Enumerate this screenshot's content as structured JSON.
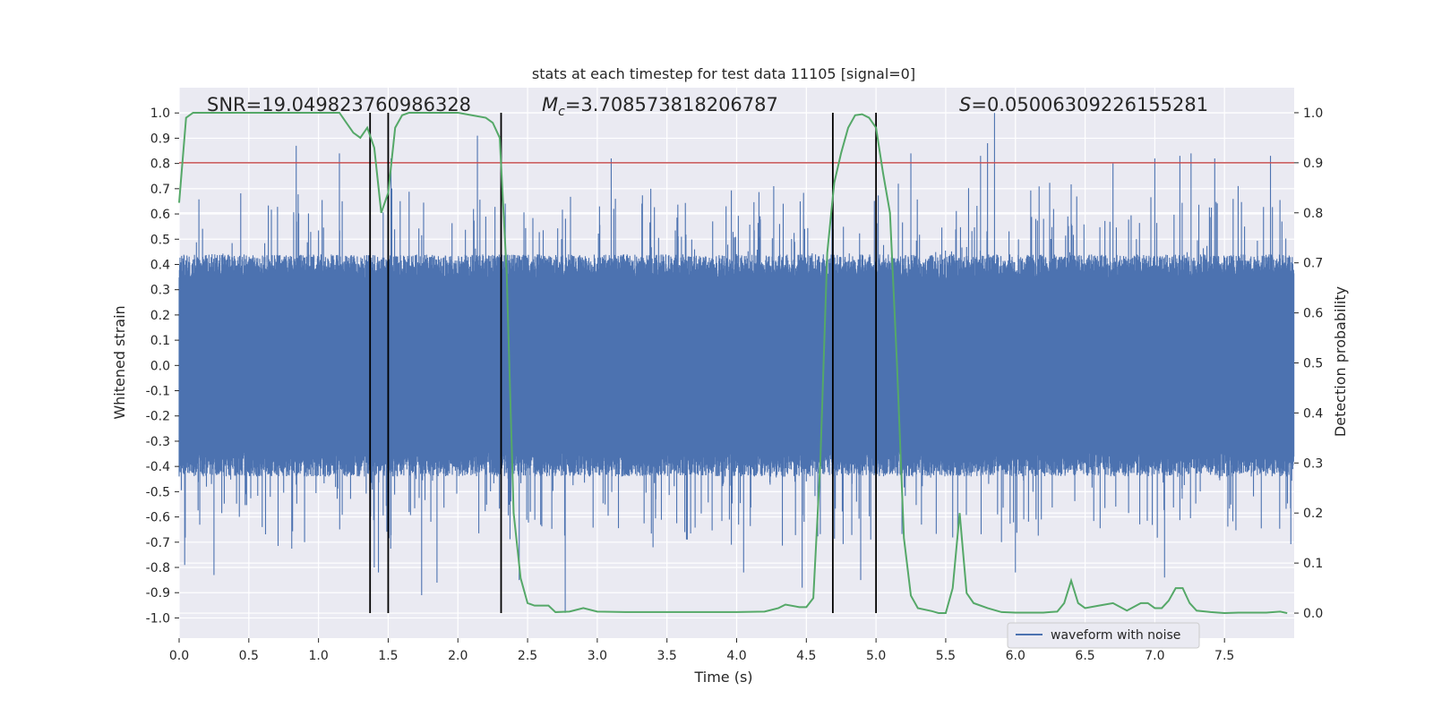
{
  "chart_data": {
    "type": "line",
    "title": "stats at each timestep for test data 11105 [signal=0]",
    "xlabel": "Time (s)",
    "ylabel_left": "Whitened strain",
    "ylabel_right": "Detection probability",
    "xlim": [
      0,
      8
    ],
    "ylim_left": [
      -1.08,
      1.1
    ],
    "ylim_right": [
      -0.05,
      1.05
    ],
    "x_ticks": [
      "0.0",
      "0.5",
      "1.0",
      "1.5",
      "2.0",
      "2.5",
      "3.0",
      "3.5",
      "4.0",
      "4.5",
      "5.0",
      "5.5",
      "6.0",
      "6.5",
      "7.0",
      "7.5"
    ],
    "x_tick_values": [
      0,
      0.5,
      1,
      1.5,
      2,
      2.5,
      3,
      3.5,
      4,
      4.5,
      5,
      5.5,
      6,
      6.5,
      7,
      7.5
    ],
    "y_left_ticks": [
      "1.0",
      "0.9",
      "0.8",
      "0.7",
      "0.6",
      "0.5",
      "0.4",
      "0.3",
      "0.2",
      "0.1",
      "0.0",
      "-0.1",
      "-0.2",
      "-0.3",
      "-0.4",
      "-0.5",
      "-0.6",
      "-0.7",
      "-0.8",
      "-0.9",
      "-1.0"
    ],
    "y_left_tick_values": [
      1.0,
      0.9,
      0.8,
      0.7,
      0.6,
      0.5,
      0.4,
      0.3,
      0.2,
      0.1,
      0.0,
      -0.1,
      -0.2,
      -0.3,
      -0.4,
      -0.5,
      -0.6,
      -0.7,
      -0.8,
      -0.9,
      -1.0
    ],
    "y_right_ticks": [
      "1.0",
      "0.9",
      "0.8",
      "0.7",
      "0.6",
      "0.5",
      "0.4",
      "0.3",
      "0.2",
      "0.1",
      "0.0"
    ],
    "y_right_tick_values": [
      1.0,
      0.9,
      0.8,
      0.7,
      0.6,
      0.5,
      0.4,
      0.3,
      0.2,
      0.1,
      0.0
    ],
    "annotations": {
      "snr": "SNR=19.049823760986328",
      "mc_symbol": "M",
      "mc_sub": "c",
      "mc_value": "=3.708573818206787",
      "s_symbol": "S",
      "s_value": "=0.05006309226155281"
    },
    "threshold": {
      "value": 0.9,
      "axis": "right",
      "color": "#c44e52"
    },
    "event_markers_x": [
      1.37,
      1.5,
      2.31,
      4.69,
      5.0
    ],
    "series": [
      {
        "name": "waveform with noise",
        "axis": "left",
        "color": "#4c72b0",
        "style": "dense noise, envelope about ±0.42 with spikes up to +1.0 and down to -0.98",
        "spikes": [
          [
            0.04,
            -0.79
          ],
          [
            0.25,
            -0.83
          ],
          [
            0.84,
            0.87
          ],
          [
            0.9,
            -0.7
          ],
          [
            1.15,
            0.84
          ],
          [
            1.4,
            -0.8
          ],
          [
            1.43,
            -0.82
          ],
          [
            1.52,
            0.82
          ],
          [
            1.74,
            -0.91
          ],
          [
            1.85,
            -0.86
          ],
          [
            2.14,
            0.91
          ],
          [
            2.31,
            0.83
          ],
          [
            2.44,
            -0.85
          ],
          [
            2.77,
            -0.98
          ],
          [
            3.1,
            0.82
          ],
          [
            3.4,
            -0.72
          ],
          [
            4.05,
            -0.82
          ],
          [
            4.47,
            -0.88
          ],
          [
            4.89,
            -0.85
          ],
          [
            5.16,
            0.72
          ],
          [
            5.25,
            0.84
          ],
          [
            5.75,
            0.83
          ],
          [
            5.8,
            0.88
          ],
          [
            5.85,
            1.0
          ],
          [
            5.9,
            -0.7
          ],
          [
            6.0,
            -0.82
          ],
          [
            6.7,
            0.8
          ],
          [
            7.0,
            0.82
          ],
          [
            7.07,
            -0.84
          ],
          [
            7.18,
            0.83
          ],
          [
            7.26,
            0.84
          ],
          [
            7.43,
            0.82
          ],
          [
            7.83,
            0.83
          ]
        ]
      },
      {
        "name": "Detection probability",
        "axis": "right",
        "color": "#55a868",
        "x": [
          0,
          0.05,
          0.1,
          0.2,
          0.3,
          0.4,
          0.5,
          0.6,
          0.7,
          0.8,
          0.9,
          1.0,
          1.05,
          1.1,
          1.15,
          1.2,
          1.25,
          1.3,
          1.35,
          1.4,
          1.45,
          1.5,
          1.55,
          1.6,
          1.65,
          1.7,
          1.8,
          1.9,
          2.0,
          2.1,
          2.2,
          2.25,
          2.3,
          2.35,
          2.4,
          2.45,
          2.5,
          2.55,
          2.6,
          2.65,
          2.7,
          2.8,
          2.9,
          3.0,
          3.2,
          3.4,
          3.6,
          3.8,
          4.0,
          4.2,
          4.3,
          4.35,
          4.45,
          4.5,
          4.55,
          4.6,
          4.65,
          4.7,
          4.75,
          4.8,
          4.85,
          4.9,
          4.95,
          5.0,
          5.05,
          5.1,
          5.15,
          5.2,
          5.25,
          5.3,
          5.4,
          5.45,
          5.5,
          5.55,
          5.6,
          5.65,
          5.7,
          5.8,
          5.9,
          6.0,
          6.1,
          6.2,
          6.25,
          6.3,
          6.35,
          6.4,
          6.45,
          6.5,
          6.6,
          6.7,
          6.8,
          6.9,
          6.95,
          7.0,
          7.05,
          7.1,
          7.15,
          7.2,
          7.25,
          7.3,
          7.4,
          7.5,
          7.6,
          7.7,
          7.8,
          7.9,
          7.95
        ],
        "y": [
          0.82,
          0.99,
          1.0,
          1.0,
          1.0,
          1.0,
          1.0,
          1.0,
          1.0,
          1.0,
          1.0,
          1.0,
          1.0,
          1.0,
          1.0,
          0.98,
          0.96,
          0.95,
          0.97,
          0.93,
          0.8,
          0.84,
          0.97,
          0.995,
          1.0,
          1.0,
          1.0,
          1.0,
          1.0,
          0.995,
          0.99,
          0.98,
          0.95,
          0.68,
          0.2,
          0.07,
          0.02,
          0.015,
          0.015,
          0.015,
          0.002,
          0.003,
          0.01,
          0.003,
          0.002,
          0.002,
          0.002,
          0.002,
          0.002,
          0.003,
          0.01,
          0.017,
          0.012,
          0.012,
          0.03,
          0.3,
          0.72,
          0.86,
          0.92,
          0.97,
          0.995,
          0.997,
          0.99,
          0.97,
          0.88,
          0.8,
          0.5,
          0.15,
          0.035,
          0.01,
          0.004,
          0.0,
          0.0,
          0.05,
          0.2,
          0.04,
          0.02,
          0.01,
          0.002,
          0.001,
          0.001,
          0.001,
          0.002,
          0.003,
          0.02,
          0.065,
          0.02,
          0.01,
          0.015,
          0.02,
          0.005,
          0.02,
          0.02,
          0.01,
          0.01,
          0.025,
          0.05,
          0.05,
          0.02,
          0.005,
          0.002,
          0.0,
          0.001,
          0.001,
          0.001,
          0.003,
          0.0
        ]
      }
    ],
    "legend": {
      "entries": [
        "waveform with noise"
      ],
      "placement": "lower-right"
    }
  }
}
